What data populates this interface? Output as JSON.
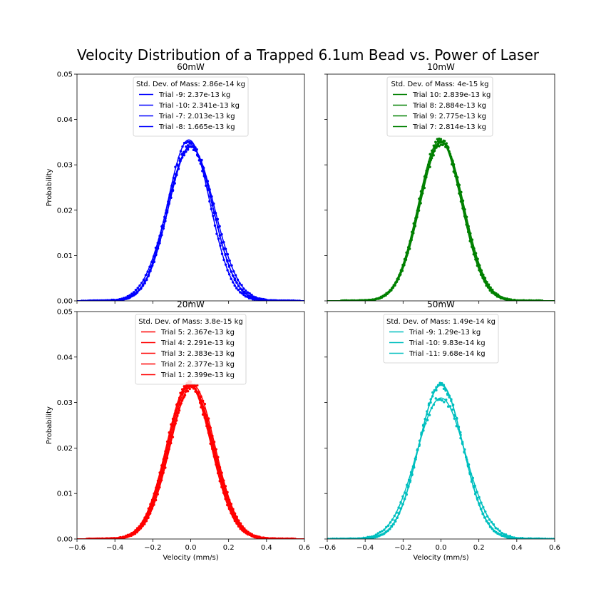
{
  "figure": {
    "title": "Velocity Distribution of a Trapped 6.1um Bead vs. Power of Laser"
  },
  "chart_data": [
    {
      "type": "line",
      "title": "60mW",
      "xlabel": "",
      "ylabel": "Probability",
      "xlim": [
        -0.6,
        0.6
      ],
      "ylim": [
        0,
        0.05
      ],
      "xticks": [
        "",
        "",
        "",
        "",
        "",
        "",
        ""
      ],
      "yticks": [
        "0.00",
        "0.01",
        "0.02",
        "0.03",
        "0.04",
        "0.05"
      ],
      "legend_title": "Std. Dev. of Mass: 2.86e-14 kg",
      "color": "#0000ff",
      "series": [
        {
          "name": "Trial -9: 2.37e-13 kg",
          "mu": 0.0,
          "sigma": 0.1175,
          "peak": 0.034
        },
        {
          "name": "Trial -10: 2.341e-13 kg",
          "mu": 0.0,
          "sigma": 0.117,
          "peak": 0.0342
        },
        {
          "name": "Trial -7: 2.013e-13 kg",
          "mu": -0.01,
          "sigma": 0.1125,
          "peak": 0.0355
        },
        {
          "name": "Trial -8: 1.665e-13 kg",
          "mu": 0.0,
          "sigma": 0.125,
          "peak": 0.034
        }
      ]
    },
    {
      "type": "line",
      "title": "10mW",
      "xlabel": "",
      "ylabel": "",
      "xlim": [
        -0.6,
        0.6
      ],
      "ylim": [
        0,
        0.05
      ],
      "xticks": [
        "",
        "",
        "",
        "",
        "",
        "",
        ""
      ],
      "yticks": [
        "",
        "",
        "",
        "",
        "",
        ""
      ],
      "legend_title": "Std. Dev. of Mass: 4e-15 kg",
      "color": "#008000",
      "series": [
        {
          "name": "Trial 10: 2.839e-13 kg",
          "mu": 0.0,
          "sigma": 0.114,
          "peak": 0.0352
        },
        {
          "name": "Trial 8: 2.884e-13 kg",
          "mu": -0.005,
          "sigma": 0.1135,
          "peak": 0.0354
        },
        {
          "name": "Trial 9: 2.775e-13 kg",
          "mu": 0.005,
          "sigma": 0.115,
          "peak": 0.035
        },
        {
          "name": "Trial 7: 2.814e-13 kg",
          "mu": 0.0,
          "sigma": 0.1145,
          "peak": 0.0351
        }
      ]
    },
    {
      "type": "line",
      "title": "20mW",
      "xlabel": "Velocity (mm/s)",
      "ylabel": "Probability",
      "xlim": [
        -0.6,
        0.6
      ],
      "ylim": [
        0,
        0.05
      ],
      "xticks": [
        "−0.6",
        "−0.4",
        "−0.2",
        "0.0",
        "0.2",
        "0.4",
        "0.6"
      ],
      "yticks": [
        "0.00",
        "0.01",
        "0.02",
        "0.03",
        "0.04",
        "0.05"
      ],
      "legend_title": "Std. Dev. of Mass: 3.8e-15 kg",
      "color": "#ff0000",
      "series": [
        {
          "name": "Trial 5: 2.367e-13 kg",
          "mu": 0.0,
          "sigma": 0.118,
          "peak": 0.0338
        },
        {
          "name": "Trial 4: 2.291e-13 kg",
          "mu": 0.005,
          "sigma": 0.1185,
          "peak": 0.0335
        },
        {
          "name": "Trial 3: 2.383e-13 kg",
          "mu": -0.005,
          "sigma": 0.1175,
          "peak": 0.034
        },
        {
          "name": "Trial 2: 2.377e-13 kg",
          "mu": 0.01,
          "sigma": 0.1178,
          "peak": 0.0339
        },
        {
          "name": "Trial 1: 2.399e-13 kg",
          "mu": -0.01,
          "sigma": 0.1172,
          "peak": 0.0341
        }
      ]
    },
    {
      "type": "line",
      "title": "50mW",
      "xlabel": "Velocity (mm/s)",
      "ylabel": "",
      "xlim": [
        -0.6,
        0.6
      ],
      "ylim": [
        0,
        0.05
      ],
      "xticks": [
        "−0.6",
        "−0.4",
        "−0.2",
        "0.0",
        "0.2",
        "0.4",
        "0.6"
      ],
      "yticks": [
        "",
        "",
        "",
        "",
        "",
        ""
      ],
      "legend_title": "Std. Dev. of Mass: 1.49e-14 kg",
      "color": "#00bfbf",
      "series": [
        {
          "name": "Trial -9: 1.29e-13 kg",
          "mu": 0.0,
          "sigma": 0.129,
          "peak": 0.031
        },
        {
          "name": "Trial -10: 9.83e-14 kg",
          "mu": 0.0,
          "sigma": 0.116,
          "peak": 0.034
        },
        {
          "name": "Trial -11: 9.68e-14 kg",
          "mu": 0.0,
          "sigma": 0.117,
          "peak": 0.0338
        }
      ]
    }
  ]
}
